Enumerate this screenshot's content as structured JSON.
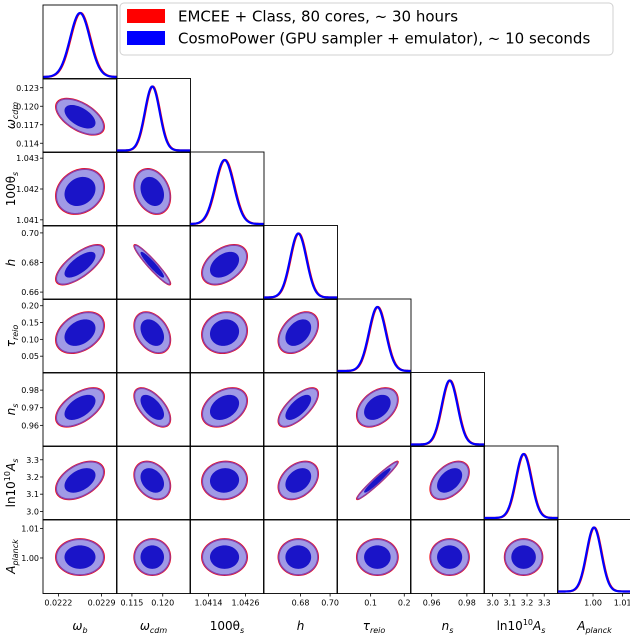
{
  "chart_data": {
    "type": "corner",
    "title": "",
    "colors": {
      "emcee": "#ff0000",
      "cosmopower": "#0000ff",
      "inner_fill": "#1a14c8",
      "outer_fill": "#a09ae6",
      "contour_edge": "#8a3fa8"
    },
    "legend": {
      "placement": "top-right",
      "entries": [
        {
          "name": "EMCEE + Class, 80 cores, ~ 30 hours",
          "color": "#ff0000"
        },
        {
          "name": "CosmoPower (GPU sampler + emulator), ~ 10 seconds",
          "color": "#0000ff"
        }
      ]
    },
    "parameters": [
      {
        "key": "omega_b",
        "label": "ω_b",
        "label_main": "ω",
        "label_sub": "b",
        "mean": 0.02255,
        "sigma": 0.00016,
        "range": [
          0.02195,
          0.02315
        ],
        "ticks": [
          0.0222,
          0.0229
        ],
        "tick_labels": [
          "0.0222",
          "0.0229"
        ]
      },
      {
        "key": "omega_cdm",
        "label": "ω_cdm",
        "label_main": "ω",
        "label_sub": "cdm",
        "mean": 0.1183,
        "sigma": 0.0012,
        "range": [
          0.1125,
          0.1245
        ],
        "ticks": [
          0.114,
          0.117,
          0.12,
          0.123
        ],
        "tick_labels": [
          "0.114",
          "0.117",
          "0.120",
          "0.123"
        ],
        "xtick_labels": [
          "0.115",
          "0.120"
        ],
        "xticks": [
          0.115,
          0.12
        ]
      },
      {
        "key": "100theta_s",
        "label": "100θ_s",
        "label_main": "100θ",
        "label_sub": "s",
        "mean": 1.04192,
        "sigma": 0.0003,
        "range": [
          1.0408,
          1.0432
        ],
        "ticks": [
          1.041,
          1.042,
          1.043
        ],
        "tick_labels": [
          "1.041",
          "1.042",
          "1.043"
        ],
        "xticks": [
          1.0414,
          1.0426
        ],
        "xtick_labels": [
          "1.0414",
          "1.0426"
        ]
      },
      {
        "key": "h",
        "label": "h",
        "label_main": "h",
        "label_sub": "",
        "mean": 0.6785,
        "sigma": 0.0055,
        "range": [
          0.655,
          0.705
        ],
        "ticks": [
          0.66,
          0.68,
          0.7
        ],
        "tick_labels": [
          "0.66",
          "0.68",
          "0.70"
        ],
        "xticks": [
          0.68,
          0.7
        ],
        "xtick_labels": [
          "0.68",
          "0.70"
        ]
      },
      {
        "key": "tau_reio",
        "label": "τ_reio",
        "label_main": "τ",
        "label_sub": "reio",
        "mean": 0.12,
        "sigma": 0.025,
        "range": [
          0.0,
          0.22
        ],
        "ticks": [
          0.05,
          0.1,
          0.15,
          0.2
        ],
        "tick_labels": [
          "0.05",
          "0.10",
          "0.15",
          "0.20"
        ],
        "xticks": [
          0.1,
          0.2
        ],
        "xtick_labels": [
          "0.1",
          "0.2"
        ]
      },
      {
        "key": "n_s",
        "label": "n_s",
        "label_main": "n",
        "label_sub": "s",
        "mean": 0.9702,
        "sigma": 0.0045,
        "range": [
          0.948,
          0.99
        ],
        "ticks": [
          0.96,
          0.97,
          0.98
        ],
        "tick_labels": [
          "0.96",
          "0.97",
          "0.98"
        ],
        "xticks": [
          0.96,
          0.98
        ],
        "xtick_labels": [
          "0.96",
          "0.98"
        ]
      },
      {
        "key": "ln10^10A_s",
        "label": "ln10^10 A_s",
        "label_main": "ln10",
        "label_sup": "10",
        "label_sub": "s",
        "mean": 3.18,
        "sigma": 0.045,
        "range": [
          2.95,
          3.38
        ],
        "ticks": [
          3.0,
          3.1,
          3.2,
          3.3
        ],
        "tick_labels": [
          "3.0",
          "3.1",
          "3.2",
          "3.3"
        ]
      },
      {
        "key": "A_planck",
        "label": "A_planck",
        "label_main": "A",
        "label_sub": "planck",
        "mean": 1.0003,
        "sigma": 0.0025,
        "range": [
          0.988,
          1.013
        ],
        "ticks": [
          1.0,
          1.01
        ],
        "tick_labels": [
          "1.00",
          "1.01"
        ]
      }
    ],
    "correlations": {
      "omega_cdm|omega_b": -0.55,
      "100theta_s|omega_b": 0.2,
      "100theta_s|omega_cdm": -0.25,
      "h|omega_b": 0.72,
      "h|omega_cdm": -0.95,
      "h|100theta_s": 0.42,
      "tau_reio|omega_b": 0.35,
      "tau_reio|omega_cdm": -0.35,
      "tau_reio|100theta_s": 0.1,
      "tau_reio|h": 0.4,
      "n_s|omega_b": 0.55,
      "n_s|omega_cdm": -0.6,
      "n_s|100theta_s": 0.35,
      "n_s|h": 0.7,
      "n_s|tau_reio": 0.4,
      "ln10^10A_s|omega_b": 0.45,
      "ln10^10A_s|omega_cdm": -0.3,
      "ln10^10A_s|100theta_s": 0.05,
      "ln10^10A_s|h": 0.35,
      "ln10^10A_s|tau_reio": 0.97,
      "ln10^10A_s|n_s": 0.45,
      "A_planck|omega_b": 0.0,
      "A_planck|omega_cdm": 0.0,
      "A_planck|100theta_s": 0.0,
      "A_planck|h": 0.0,
      "A_planck|tau_reio": 0.0,
      "A_planck|n_s": 0.0,
      "A_planck|ln10^10A_s": 0.0
    },
    "contour_levels": [
      "68%",
      "95%"
    ]
  }
}
